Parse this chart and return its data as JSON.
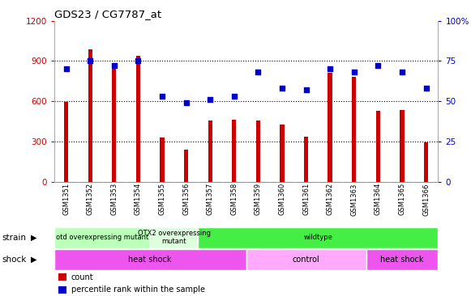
{
  "title": "GDS23 / CG7787_at",
  "samples": [
    "GSM1351",
    "GSM1352",
    "GSM1353",
    "GSM1354",
    "GSM1355",
    "GSM1356",
    "GSM1357",
    "GSM1358",
    "GSM1359",
    "GSM1360",
    "GSM1361",
    "GSM1362",
    "GSM1363",
    "GSM1364",
    "GSM1365",
    "GSM1366"
  ],
  "bar_values": [
    595,
    990,
    855,
    940,
    330,
    240,
    455,
    465,
    455,
    430,
    340,
    810,
    780,
    530,
    535,
    295
  ],
  "dot_values": [
    70,
    75,
    72,
    75,
    53,
    49,
    51,
    53,
    68,
    58,
    57,
    70,
    68,
    72,
    68,
    58
  ],
  "bar_color": "#cc0000",
  "dot_color": "#0000cc",
  "ylim_left": [
    0,
    1200
  ],
  "ylim_right": [
    0,
    100
  ],
  "yticks_left": [
    0,
    300,
    600,
    900,
    1200
  ],
  "yticks_right": [
    0,
    25,
    50,
    75,
    100
  ],
  "yticklabels_right": [
    "0",
    "25",
    "50",
    "75",
    "100%"
  ],
  "grid_values": [
    300,
    600,
    900
  ],
  "strain_groups": [
    {
      "label": "otd overexpressing mutant",
      "start": 0,
      "end": 4,
      "color": "#bbffbb"
    },
    {
      "label": "OTX2 overexpressing\nmutant",
      "start": 4,
      "end": 6,
      "color": "#ddffdd"
    },
    {
      "label": "wildtype",
      "start": 6,
      "end": 16,
      "color": "#44ee44"
    }
  ],
  "shock_groups": [
    {
      "label": "heat shock",
      "start": 0,
      "end": 8,
      "color": "#ee55ee"
    },
    {
      "label": "control",
      "start": 8,
      "end": 13,
      "color": "#ffaaff"
    },
    {
      "label": "heat shock",
      "start": 13,
      "end": 16,
      "color": "#ee55ee"
    }
  ],
  "strain_label": "strain",
  "shock_label": "shock",
  "xtick_bg": "#d0d0d0",
  "plot_bg": "#ffffff",
  "legend_items": [
    {
      "color": "#cc0000",
      "label": "count"
    },
    {
      "color": "#0000cc",
      "label": "percentile rank within the sample"
    }
  ]
}
